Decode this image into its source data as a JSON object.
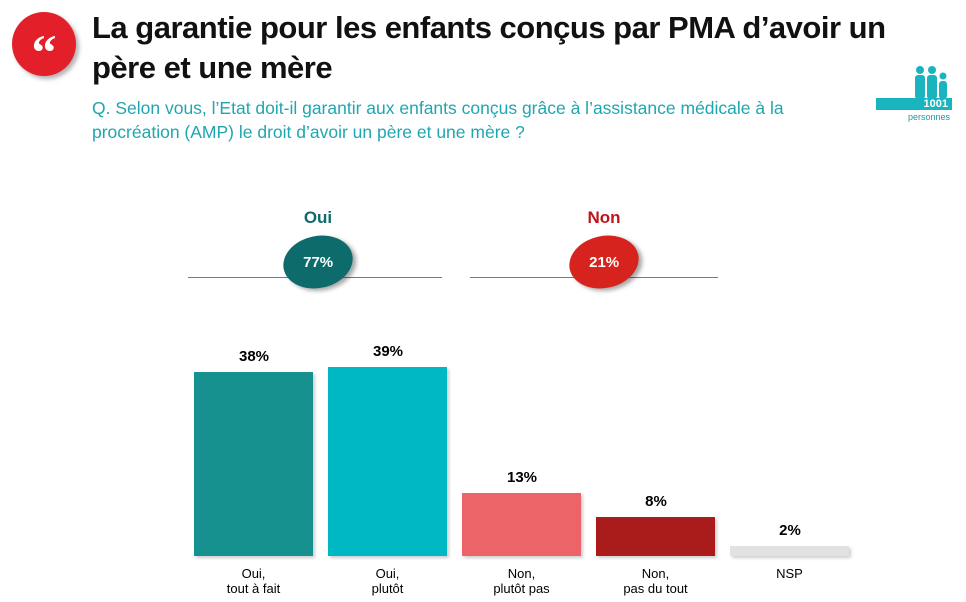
{
  "header": {
    "title": "La garantie pour les enfants conçus par PMA d’avoir un père et une mère",
    "question": "Q. Selon vous, l’Etat doit-il garantir aux enfants conçus grâce à l’assistance médicale à la procréation (AMP) le droit d’avoir un père et une mère ?",
    "sample_count": "1001",
    "sample_label": "personnes",
    "logo_icon": "quote-icon"
  },
  "summary": [
    {
      "label": "Oui",
      "value": "77%",
      "color": "#0d6b6c"
    },
    {
      "label": "Non",
      "value": "21%",
      "color": "#d7231d"
    }
  ],
  "chart_data": {
    "type": "bar",
    "categories": [
      "Oui,\ntout à fait",
      "Oui,\nplutôt",
      "Non,\nplutôt pas",
      "Non,\npas du tout",
      "NSP"
    ],
    "values": [
      38,
      39,
      13,
      8,
      2
    ],
    "labels": [
      "38%",
      "39%",
      "13%",
      "8%",
      "2%"
    ],
    "colors": [
      "#17918f",
      "#00b8c4",
      "#ec6468",
      "#aa1b1b",
      "#e2e2e2"
    ],
    "unit": "%",
    "ylim": [
      0,
      40
    ]
  }
}
